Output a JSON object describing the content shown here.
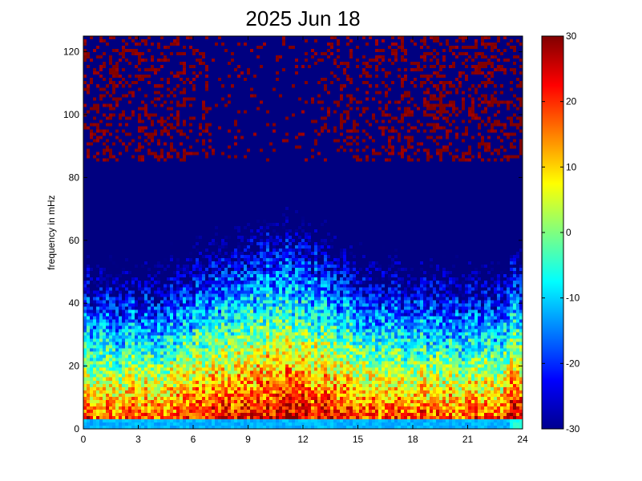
{
  "chart_data": {
    "type": "heatmap",
    "title": "2025 Jun 18",
    "xlabel": "",
    "ylabel": "frequency in mHz",
    "xlim": [
      0,
      24
    ],
    "ylim": [
      0,
      125
    ],
    "x_ticks": [
      "0",
      "3",
      "6",
      "9",
      "12",
      "15",
      "18",
      "21",
      "24"
    ],
    "y_ticks": [
      "0",
      "20",
      "40",
      "60",
      "80",
      "100",
      "120"
    ],
    "colorbar": {
      "range": [
        -30,
        30
      ],
      "ticks": [
        "30",
        "20",
        "10",
        "0",
        "-10",
        "-20",
        "-30"
      ],
      "colormap": "jet"
    },
    "grid": false
  }
}
